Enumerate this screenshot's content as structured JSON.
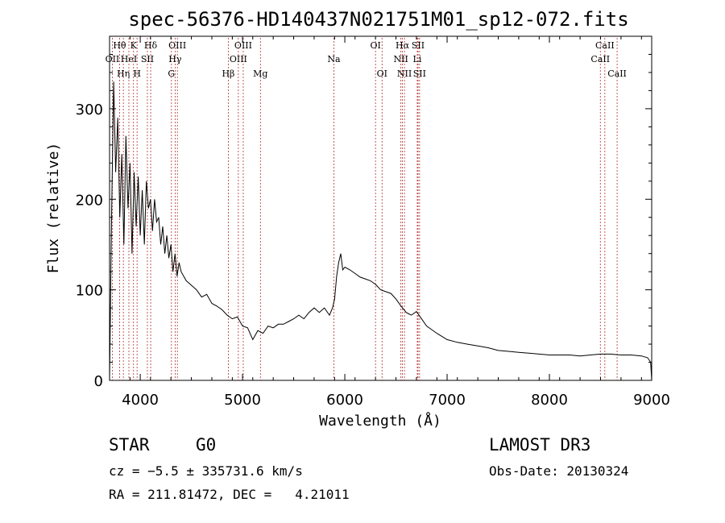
{
  "chart_data": {
    "type": "line",
    "title": "spec-56376-HD140437N021751M01_sp12-072.fits",
    "xlabel": "Wavelength (Å)",
    "ylabel": "Flux (relative)",
    "xlim": [
      3700,
      9000
    ],
    "ylim": [
      0,
      380
    ],
    "xticks": [
      4000,
      5000,
      6000,
      7000,
      8000,
      9000
    ],
    "yticks": [
      0,
      100,
      200,
      300
    ],
    "x": [
      3700,
      3720,
      3740,
      3760,
      3780,
      3800,
      3820,
      3840,
      3860,
      3880,
      3900,
      3920,
      3940,
      3960,
      3980,
      4000,
      4020,
      4040,
      4060,
      4080,
      4100,
      4120,
      4140,
      4160,
      4180,
      4200,
      4220,
      4240,
      4260,
      4280,
      4300,
      4320,
      4340,
      4360,
      4380,
      4400,
      4450,
      4500,
      4550,
      4600,
      4650,
      4700,
      4750,
      4800,
      4850,
      4900,
      4950,
      5000,
      5050,
      5100,
      5150,
      5200,
      5250,
      5300,
      5350,
      5400,
      5450,
      5500,
      5550,
      5600,
      5650,
      5700,
      5750,
      5800,
      5850,
      5880,
      5900,
      5920,
      5940,
      5960,
      5980,
      6000,
      6050,
      6100,
      6150,
      6200,
      6250,
      6300,
      6350,
      6400,
      6450,
      6500,
      6550,
      6600,
      6650,
      6700,
      6750,
      6800,
      6850,
      6900,
      7000,
      7100,
      7200,
      7300,
      7400,
      7500,
      7600,
      7700,
      7800,
      7900,
      8000,
      8100,
      8200,
      8300,
      8400,
      8500,
      8600,
      8700,
      8800,
      8900,
      8960,
      8990,
      9000
    ],
    "y": [
      0,
      180,
      330,
      230,
      290,
      180,
      250,
      150,
      270,
      190,
      240,
      140,
      230,
      170,
      225,
      160,
      210,
      150,
      220,
      190,
      200,
      165,
      200,
      175,
      180,
      150,
      170,
      140,
      160,
      135,
      150,
      120,
      140,
      115,
      130,
      120,
      110,
      105,
      100,
      92,
      95,
      85,
      82,
      78,
      72,
      68,
      70,
      60,
      58,
      45,
      55,
      52,
      60,
      58,
      62,
      62,
      65,
      68,
      72,
      68,
      75,
      80,
      75,
      80,
      72,
      80,
      90,
      115,
      130,
      140,
      122,
      125,
      122,
      118,
      114,
      112,
      110,
      106,
      100,
      98,
      96,
      90,
      82,
      75,
      72,
      76,
      68,
      60,
      56,
      52,
      45,
      42,
      40,
      38,
      36,
      33,
      32,
      31,
      30,
      29,
      28,
      28,
      28,
      27,
      28,
      29,
      29,
      28,
      28,
      27,
      25,
      20,
      0
    ],
    "lines": [
      {
        "label": "OII",
        "x": 3727,
        "row": 1
      },
      {
        "label": "Hθ",
        "x": 3798,
        "row": 0
      },
      {
        "label": "Hη",
        "x": 3835,
        "row": 2
      },
      {
        "label": "HeI",
        "x": 3889,
        "row": 1
      },
      {
        "label": "K",
        "x": 3934,
        "row": 0
      },
      {
        "label": "H",
        "x": 3969,
        "row": 2
      },
      {
        "label": "SII",
        "x": 4070,
        "row": 1
      },
      {
        "label": "Hδ",
        "x": 4102,
        "row": 0
      },
      {
        "label": "G",
        "x": 4305,
        "row": 2
      },
      {
        "label": "Hγ",
        "x": 4341,
        "row": 1
      },
      {
        "label": "OIII",
        "x": 4363,
        "row": 0
      },
      {
        "label": "Hβ",
        "x": 4861,
        "row": 2
      },
      {
        "label": "OIII",
        "x": 4959,
        "row": 1
      },
      {
        "label": "OIII",
        "x": 5007,
        "row": 0
      },
      {
        "label": "Mg",
        "x": 5175,
        "row": 2
      },
      {
        "label": "Na",
        "x": 5893,
        "row": 1
      },
      {
        "label": "OI",
        "x": 6300,
        "row": 0
      },
      {
        "label": "OI",
        "x": 6364,
        "row": 2
      },
      {
        "label": "NII",
        "x": 6548,
        "row": 1
      },
      {
        "label": "Hα",
        "x": 6563,
        "row": 0
      },
      {
        "label": "NII",
        "x": 6583,
        "row": 2
      },
      {
        "label": "Li",
        "x": 6708,
        "row": 1
      },
      {
        "label": "SII",
        "x": 6716,
        "row": 0
      },
      {
        "label": "SII",
        "x": 6731,
        "row": 2
      },
      {
        "label": "CaII",
        "x": 8498,
        "row": 1
      },
      {
        "label": "CaII",
        "x": 8542,
        "row": 0
      },
      {
        "label": "CaII",
        "x": 8662,
        "row": 2
      }
    ],
    "line_color": "#b03030",
    "spectrum_color": "#000000"
  },
  "info": {
    "class": "STAR",
    "subclass": "G0",
    "survey": "LAMOST DR3",
    "redshift": "cz = −5.5 ± 335731.6 km/s",
    "obs_date": "Obs-Date: 20130324",
    "coords": "RA = 211.81472, DEC =   4.21011"
  }
}
